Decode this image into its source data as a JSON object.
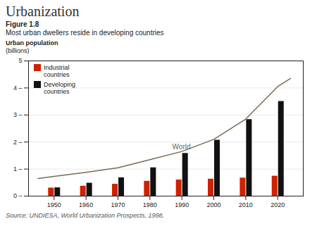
{
  "chart_data": {
    "type": "bar",
    "title": "Urbanization",
    "figure_label": "Figure 1.8",
    "subtitle": "Most urban dwellers reside in developing countries",
    "ylabel": "Urban population",
    "ylabel_units": "(billions)",
    "source": "Source: UNDIESA, World Urbanization Prospects, 1998.",
    "x": [
      1950,
      1960,
      1970,
      1980,
      1990,
      2000,
      2010,
      2020
    ],
    "series": [
      {
        "name": "Industrial\ncountries",
        "type": "bar",
        "color": "#CC2200",
        "values": [
          0.3,
          0.37,
          0.44,
          0.55,
          0.6,
          0.63,
          0.67,
          0.74
        ]
      },
      {
        "name": "Developing\ncountries",
        "type": "bar",
        "color": "#111111",
        "values": [
          0.31,
          0.48,
          0.68,
          1.05,
          1.58,
          2.07,
          2.83,
          3.5
        ]
      },
      {
        "name": "World",
        "type": "line",
        "color": "#7a6a55",
        "x": [
          1945,
          1950,
          1960,
          1970,
          1980,
          1990,
          2000,
          2010,
          2020,
          2024
        ],
        "values": [
          0.65,
          0.73,
          0.88,
          1.05,
          1.35,
          1.65,
          2.1,
          2.85,
          4.05,
          4.35
        ]
      }
    ],
    "annotations": [
      {
        "text": "World",
        "x": 1987,
        "y": 1.72
      }
    ],
    "xlim": [
      1942,
      2028
    ],
    "xticks": [
      1950,
      1960,
      1970,
      1980,
      1990,
      2000,
      2010,
      2020
    ],
    "ylim": [
      0,
      5
    ],
    "yticks": [
      {
        "value": 0,
        "label": "0 –"
      },
      {
        "value": 1,
        "label": "1 –"
      },
      {
        "value": 2,
        "label": "2 –"
      },
      {
        "value": 3,
        "label": "3 –"
      },
      {
        "value": 4,
        "label": "4 –"
      },
      5
    ],
    "grid": true,
    "legend": "upper left"
  }
}
